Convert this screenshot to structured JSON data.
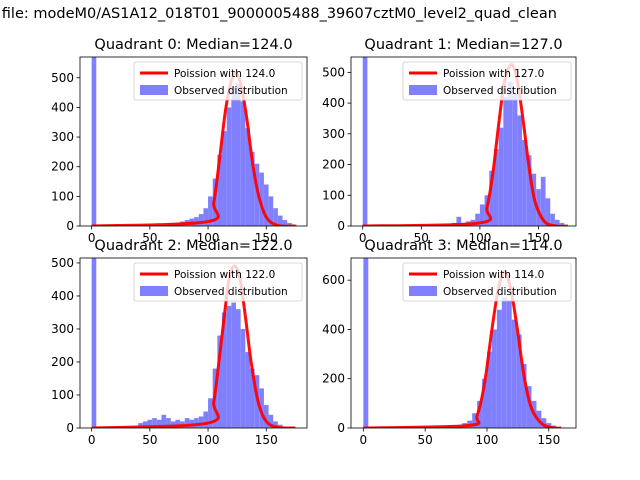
{
  "suptitle": "n file: modeM0/AS1A12_018T01_9000005488_39607cztM0_level2_quad_clean",
  "colors": {
    "observed": "#8080ff",
    "poisson": "#ff0000",
    "legend_border": "#cccccc"
  },
  "chart_data": [
    {
      "type": "bar",
      "quadrant": 0,
      "title": "Quadrant 0: Median=124.0",
      "xlim": [
        -10,
        185
      ],
      "ylim": [
        0,
        570
      ],
      "xticks": [
        0,
        50,
        100,
        150
      ],
      "yticks": [
        0,
        100,
        200,
        300,
        400,
        500
      ],
      "legend": {
        "placement": "top-right",
        "entries": [
          "Poission with 124.0",
          "Observed distribution"
        ]
      },
      "series": [
        {
          "name": "Poission with 124.0",
          "kind": "line",
          "mean": 124.0,
          "peak": 515,
          "x": [
            0,
            100,
            105,
            110,
            115,
            120,
            124,
            128,
            133,
            138,
            143,
            150,
            160,
            175
          ],
          "y": [
            0,
            15,
            80,
            230,
            390,
            490,
            515,
            480,
            370,
            220,
            110,
            30,
            2,
            0
          ]
        },
        {
          "name": "Observed distribution",
          "kind": "histogram",
          "bin_width": 4,
          "bins": [
            {
              "x": 0,
              "y": 570
            },
            {
              "x": 68,
              "y": 5
            },
            {
              "x": 72,
              "y": 10
            },
            {
              "x": 76,
              "y": 15
            },
            {
              "x": 80,
              "y": 20
            },
            {
              "x": 84,
              "y": 25
            },
            {
              "x": 88,
              "y": 30
            },
            {
              "x": 92,
              "y": 40
            },
            {
              "x": 96,
              "y": 60
            },
            {
              "x": 100,
              "y": 100
            },
            {
              "x": 104,
              "y": 160
            },
            {
              "x": 108,
              "y": 240
            },
            {
              "x": 112,
              "y": 320
            },
            {
              "x": 116,
              "y": 400
            },
            {
              "x": 120,
              "y": 470
            },
            {
              "x": 124,
              "y": 480
            },
            {
              "x": 128,
              "y": 420
            },
            {
              "x": 132,
              "y": 330
            },
            {
              "x": 136,
              "y": 250
            },
            {
              "x": 140,
              "y": 210
            },
            {
              "x": 144,
              "y": 180
            },
            {
              "x": 148,
              "y": 140
            },
            {
              "x": 152,
              "y": 100
            },
            {
              "x": 156,
              "y": 60
            },
            {
              "x": 160,
              "y": 35
            },
            {
              "x": 164,
              "y": 20
            },
            {
              "x": 168,
              "y": 10
            },
            {
              "x": 172,
              "y": 5
            }
          ]
        }
      ]
    },
    {
      "type": "bar",
      "quadrant": 1,
      "title": "Quadrant 1: Median=127.0",
      "xlim": [
        -10,
        182
      ],
      "ylim": [
        0,
        550
      ],
      "xticks": [
        0,
        50,
        100,
        150
      ],
      "yticks": [
        0,
        100,
        200,
        300,
        400,
        500
      ],
      "legend": {
        "placement": "top-right",
        "entries": [
          "Poission with 127.0",
          "Observed distribution"
        ]
      },
      "series": [
        {
          "name": "Poission with 127.0",
          "kind": "line",
          "mean": 127.0,
          "peak": 525,
          "x": [
            0,
            100,
            106,
            111,
            116,
            121,
            127,
            132,
            137,
            142,
            147,
            155,
            165,
            175
          ],
          "y": [
            0,
            10,
            60,
            170,
            330,
            470,
            525,
            470,
            340,
            190,
            80,
            15,
            0,
            0
          ]
        },
        {
          "name": "Observed distribution",
          "kind": "histogram",
          "bin_width": 4,
          "bins": [
            {
              "x": 0,
              "y": 550
            },
            {
              "x": 72,
              "y": 5
            },
            {
              "x": 76,
              "y": 10
            },
            {
              "x": 80,
              "y": 30
            },
            {
              "x": 84,
              "y": 10
            },
            {
              "x": 88,
              "y": 15
            },
            {
              "x": 92,
              "y": 20
            },
            {
              "x": 96,
              "y": 40
            },
            {
              "x": 100,
              "y": 70
            },
            {
              "x": 104,
              "y": 100
            },
            {
              "x": 108,
              "y": 180
            },
            {
              "x": 112,
              "y": 250
            },
            {
              "x": 116,
              "y": 320
            },
            {
              "x": 120,
              "y": 420
            },
            {
              "x": 124,
              "y": 470
            },
            {
              "x": 128,
              "y": 430
            },
            {
              "x": 132,
              "y": 360
            },
            {
              "x": 136,
              "y": 280
            },
            {
              "x": 140,
              "y": 230
            },
            {
              "x": 144,
              "y": 170
            },
            {
              "x": 148,
              "y": 120
            },
            {
              "x": 152,
              "y": 160
            },
            {
              "x": 156,
              "y": 90
            },
            {
              "x": 160,
              "y": 40
            },
            {
              "x": 164,
              "y": 20
            },
            {
              "x": 168,
              "y": 10
            }
          ]
        }
      ]
    },
    {
      "type": "bar",
      "quadrant": 2,
      "title": "Quadrant 2: Median=122.0",
      "xlim": [
        -10,
        185
      ],
      "ylim": [
        0,
        515
      ],
      "xticks": [
        0,
        50,
        100,
        150
      ],
      "yticks": [
        0,
        100,
        200,
        300,
        400,
        500
      ],
      "legend": {
        "placement": "top-right",
        "entries": [
          "Poission with 122.0",
          "Observed distribution"
        ]
      },
      "series": [
        {
          "name": "Poission with 122.0",
          "kind": "line",
          "mean": 122.0,
          "peak": 490,
          "x": [
            0,
            100,
            105,
            110,
            115,
            118,
            122,
            127,
            132,
            137,
            143,
            150,
            160,
            175
          ],
          "y": [
            0,
            15,
            80,
            220,
            370,
            450,
            490,
            460,
            340,
            200,
            80,
            20,
            2,
            0
          ]
        },
        {
          "name": "Observed distribution",
          "kind": "histogram",
          "bin_width": 4,
          "bins": [
            {
              "x": 0,
              "y": 515
            },
            {
              "x": 40,
              "y": 15
            },
            {
              "x": 44,
              "y": 20
            },
            {
              "x": 48,
              "y": 25
            },
            {
              "x": 52,
              "y": 30
            },
            {
              "x": 56,
              "y": 25
            },
            {
              "x": 60,
              "y": 40
            },
            {
              "x": 64,
              "y": 30
            },
            {
              "x": 68,
              "y": 20
            },
            {
              "x": 72,
              "y": 25
            },
            {
              "x": 76,
              "y": 20
            },
            {
              "x": 80,
              "y": 30
            },
            {
              "x": 84,
              "y": 25
            },
            {
              "x": 88,
              "y": 30
            },
            {
              "x": 92,
              "y": 35
            },
            {
              "x": 96,
              "y": 50
            },
            {
              "x": 100,
              "y": 90
            },
            {
              "x": 104,
              "y": 180
            },
            {
              "x": 108,
              "y": 280
            },
            {
              "x": 112,
              "y": 350
            },
            {
              "x": 116,
              "y": 370
            },
            {
              "x": 120,
              "y": 380
            },
            {
              "x": 124,
              "y": 360
            },
            {
              "x": 128,
              "y": 300
            },
            {
              "x": 132,
              "y": 230
            },
            {
              "x": 136,
              "y": 180
            },
            {
              "x": 140,
              "y": 160
            },
            {
              "x": 144,
              "y": 120
            },
            {
              "x": 148,
              "y": 70
            },
            {
              "x": 152,
              "y": 40
            },
            {
              "x": 156,
              "y": 20
            },
            {
              "x": 160,
              "y": 10
            }
          ]
        }
      ]
    },
    {
      "type": "bar",
      "quadrant": 3,
      "title": "Quadrant 3: Median=114.0",
      "xlim": [
        -10,
        172
      ],
      "ylim": [
        0,
        690
      ],
      "xticks": [
        0,
        50,
        100,
        150
      ],
      "yticks": [
        0,
        200,
        400,
        600
      ],
      "legend": {
        "placement": "top-right",
        "entries": [
          "Poission with 114.0",
          "Observed distribution"
        ]
      },
      "series": [
        {
          "name": "Poission with 114.0",
          "kind": "line",
          "mean": 114.0,
          "peak": 635,
          "x": [
            0,
            85,
            92,
            98,
            104,
            109,
            114,
            119,
            124,
            130,
            136,
            145,
            155,
            160
          ],
          "y": [
            0,
            10,
            50,
            180,
            400,
            560,
            635,
            570,
            420,
            210,
            80,
            15,
            0,
            0
          ]
        },
        {
          "name": "Observed distribution",
          "kind": "histogram",
          "bin_width": 4,
          "bins": [
            {
              "x": 0,
              "y": 690
            },
            {
              "x": 76,
              "y": 10
            },
            {
              "x": 80,
              "y": 20
            },
            {
              "x": 84,
              "y": 30
            },
            {
              "x": 88,
              "y": 60
            },
            {
              "x": 92,
              "y": 110
            },
            {
              "x": 96,
              "y": 200
            },
            {
              "x": 100,
              "y": 310
            },
            {
              "x": 104,
              "y": 400
            },
            {
              "x": 108,
              "y": 480
            },
            {
              "x": 112,
              "y": 530
            },
            {
              "x": 116,
              "y": 520
            },
            {
              "x": 120,
              "y": 440
            },
            {
              "x": 124,
              "y": 380
            },
            {
              "x": 128,
              "y": 260
            },
            {
              "x": 132,
              "y": 170
            },
            {
              "x": 136,
              "y": 110
            },
            {
              "x": 140,
              "y": 70
            },
            {
              "x": 144,
              "y": 40
            },
            {
              "x": 148,
              "y": 20
            },
            {
              "x": 152,
              "y": 10
            }
          ]
        }
      ]
    }
  ]
}
